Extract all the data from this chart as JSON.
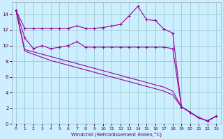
{
  "xlabel": "Windchill (Refroidissement éolien,°C)",
  "x_values": [
    0,
    1,
    2,
    3,
    4,
    5,
    6,
    7,
    8,
    9,
    10,
    11,
    12,
    13,
    14,
    15,
    16,
    17,
    18,
    19,
    20,
    21,
    22,
    23
  ],
  "line1_y": [
    14.5,
    12.2,
    12.2,
    12.2,
    12.2,
    12.2,
    12.2,
    12.5,
    12.2,
    12.2,
    12.3,
    12.5,
    12.7,
    13.8,
    15.0,
    13.3,
    13.2,
    12.1,
    11.6,
    2.2,
    1.5,
    0.8,
    0.4,
    1.0
  ],
  "line2_y": [
    14.5,
    11.0,
    9.6,
    10.0,
    9.6,
    9.8,
    10.0,
    10.5,
    9.8,
    9.8,
    9.8,
    9.8,
    9.8,
    9.8,
    9.8,
    9.8,
    9.8,
    9.8,
    9.6,
    2.2,
    1.5,
    0.8,
    0.4,
    1.0
  ],
  "line3_y": [
    14.5,
    9.5,
    9.2,
    8.9,
    8.6,
    8.3,
    8.0,
    7.7,
    7.4,
    7.1,
    6.8,
    6.5,
    6.2,
    5.9,
    5.6,
    5.3,
    5.0,
    4.7,
    4.2,
    2.2,
    1.5,
    0.8,
    0.4,
    1.0
  ],
  "line4_y": [
    14.5,
    9.3,
    8.9,
    8.5,
    8.1,
    7.8,
    7.5,
    7.2,
    6.9,
    6.6,
    6.3,
    6.0,
    5.7,
    5.4,
    5.1,
    4.8,
    4.5,
    4.2,
    3.7,
    2.2,
    1.5,
    0.8,
    0.4,
    1.0
  ],
  "line_color": "#990099",
  "bg_color": "#cceeff",
  "grid_color": "#99cccc",
  "ylim": [
    0,
    15.5
  ],
  "xlim": [
    -0.5,
    23.5
  ],
  "yticks": [
    0,
    2,
    4,
    6,
    8,
    10,
    12,
    14
  ],
  "xticks": [
    0,
    1,
    2,
    3,
    4,
    5,
    6,
    7,
    8,
    9,
    10,
    11,
    12,
    13,
    14,
    15,
    16,
    17,
    18,
    19,
    20,
    21,
    22,
    23
  ]
}
